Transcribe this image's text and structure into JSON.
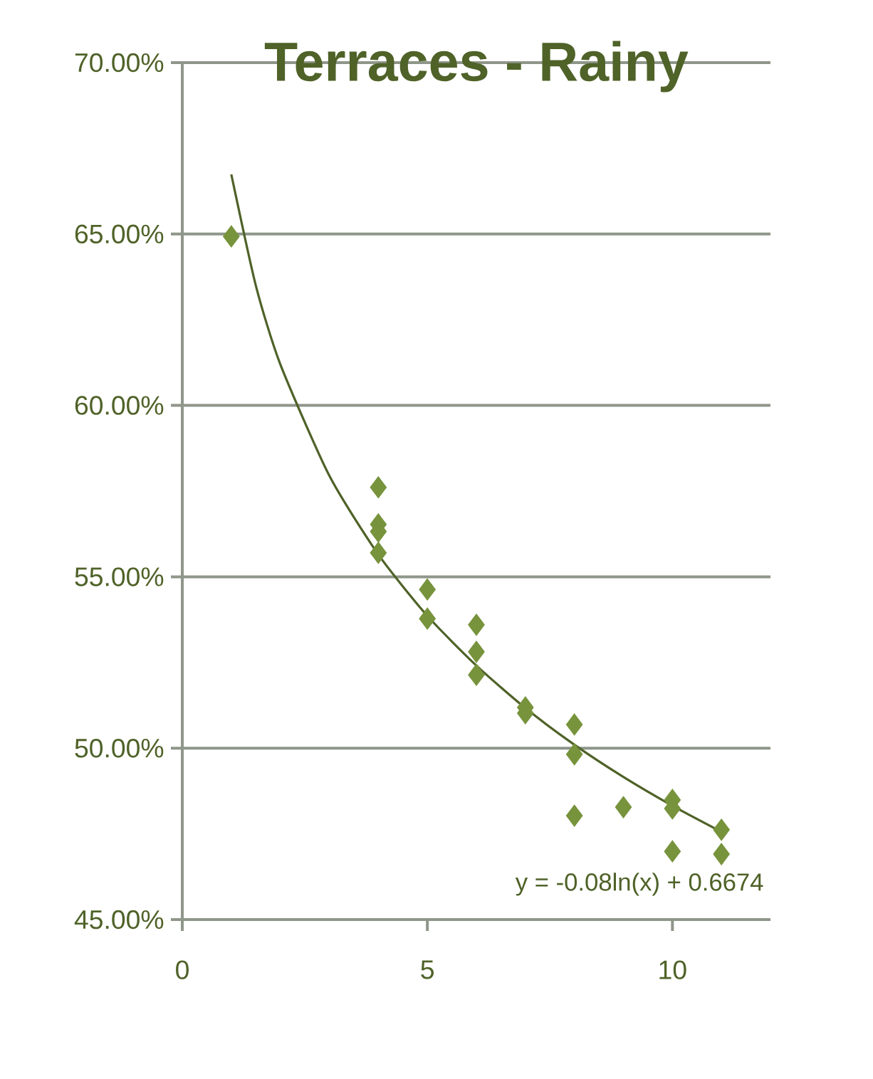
{
  "chart_data": {
    "type": "scatter",
    "title": "Terraces - Rainy",
    "series": [
      {
        "color": "#77933c",
        "marker": "diamond",
        "x": [
          1,
          4,
          4,
          4,
          4,
          5,
          5,
          6,
          6,
          6,
          7,
          7,
          8,
          8,
          8,
          9,
          10,
          10,
          10,
          11,
          11
        ],
        "values": [
          64.93,
          57.61,
          56.53,
          56.32,
          55.7,
          54.63,
          53.78,
          53.6,
          52.81,
          52.14,
          51.19,
          51.02,
          50.69,
          49.82,
          48.03,
          48.28,
          48.49,
          48.24,
          46.99,
          47.62,
          46.91
        ]
      },
      {
        "type": "line",
        "color": "#4f6228",
        "marker": "none",
        "line_style": "solid",
        "x": [
          1,
          1.5,
          2,
          3,
          4,
          5,
          6,
          7,
          8,
          9,
          10,
          11
        ],
        "values": [
          66.74,
          63.5,
          61.2,
          57.95,
          55.65,
          53.86,
          52.41,
          51.17,
          50.1,
          49.16,
          48.32,
          47.56
        ]
      }
    ],
    "xlim": [
      0,
      12
    ],
    "xticks": [
      0,
      5,
      10
    ],
    "ylim": [
      45,
      70
    ],
    "yticks": [
      {
        "value": 45,
        "label": "45.00%"
      },
      {
        "value": 50,
        "label": "50.00%"
      },
      {
        "value": 55,
        "label": "55.00%"
      },
      {
        "value": 60,
        "label": "60.00%"
      },
      {
        "value": 65,
        "label": "65.00%"
      },
      {
        "value": 70,
        "label": "70.00%"
      }
    ],
    "grid": "y",
    "annotations": [
      "y = -0.08ln(x) + 0.6674"
    ]
  }
}
